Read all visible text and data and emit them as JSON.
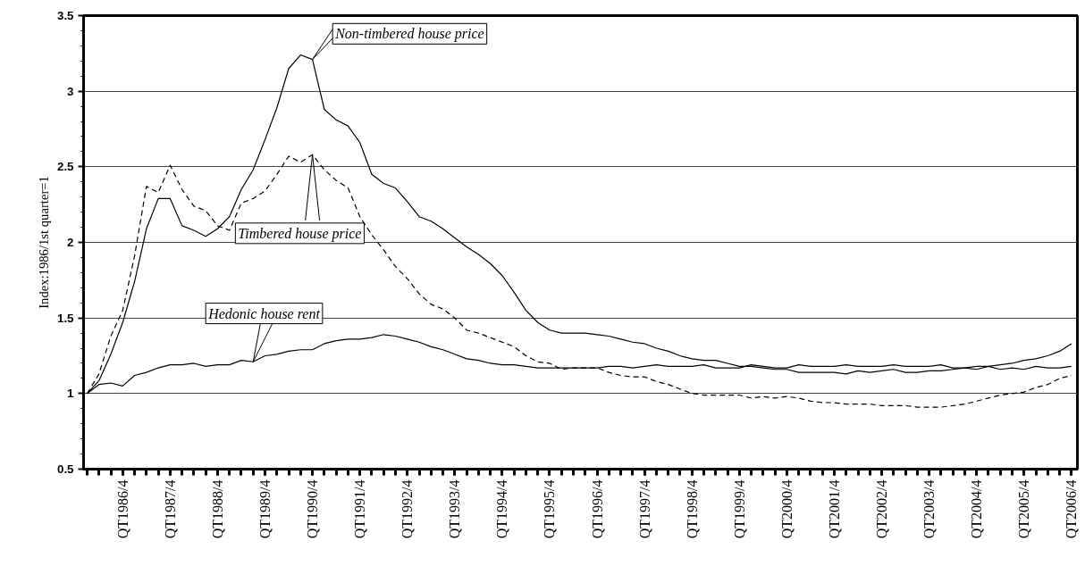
{
  "chart_data": {
    "type": "line",
    "categories": [
      null,
      null,
      null,
      "QT1986/4",
      null,
      null,
      null,
      "QT1987/4",
      null,
      null,
      null,
      "QT1988/4",
      null,
      null,
      null,
      "QT1989/4",
      null,
      null,
      null,
      "QT1990/4",
      null,
      null,
      null,
      "QT1991/4",
      null,
      null,
      null,
      "QT1992/4",
      null,
      null,
      null,
      "QT1993/4",
      null,
      null,
      null,
      "QT1994/4",
      null,
      null,
      null,
      "QT1995/4",
      null,
      null,
      null,
      "QT1996/4",
      null,
      null,
      null,
      "QT1997/4",
      null,
      null,
      null,
      "QT1998/4",
      null,
      null,
      null,
      "QT1999/4",
      null,
      null,
      null,
      "QT2000/4",
      null,
      null,
      null,
      "QT2001/4",
      null,
      null,
      null,
      "QT2002/4",
      null,
      null,
      null,
      "QT2003/4",
      null,
      null,
      null,
      "QT2004/4",
      null,
      null,
      null,
      "QT2005/4",
      null,
      null,
      null,
      "QT2006/4"
    ],
    "ylabel": "Index:1986/1st quarter=1",
    "ylim": [
      0.5,
      3.5
    ],
    "yticks": [
      0.5,
      1,
      1.5,
      2,
      2.5,
      3,
      3.5
    ],
    "grid": "y",
    "series": [
      {
        "name": "Non-timbered house price",
        "color": "#000000",
        "line_style": "solid",
        "values": [
          1.0,
          1.085,
          1.26,
          1.47,
          1.74,
          2.09,
          2.29,
          2.29,
          2.11,
          2.08,
          2.04,
          2.09,
          2.17,
          2.35,
          2.48,
          2.68,
          2.89,
          3.15,
          3.24,
          3.21,
          2.88,
          2.81,
          2.77,
          2.66,
          2.45,
          2.39,
          2.36,
          2.27,
          2.17,
          2.14,
          2.09,
          2.03,
          1.97,
          1.92,
          1.86,
          1.78,
          1.67,
          1.55,
          1.47,
          1.42,
          1.4,
          1.4,
          1.4,
          1.39,
          1.38,
          1.36,
          1.34,
          1.33,
          1.3,
          1.28,
          1.25,
          1.23,
          1.22,
          1.22,
          1.2,
          1.18,
          1.18,
          1.17,
          1.16,
          1.16,
          1.14,
          1.14,
          1.14,
          1.14,
          1.13,
          1.15,
          1.14,
          1.15,
          1.16,
          1.14,
          1.14,
          1.15,
          1.15,
          1.16,
          1.17,
          1.18,
          1.18,
          1.19,
          1.2,
          1.22,
          1.23,
          1.25,
          1.28,
          1.33
        ]
      },
      {
        "name": "Timbered house price",
        "color": "#000000",
        "line_style": "dashed",
        "values": [
          1.0,
          1.13,
          1.38,
          1.55,
          1.91,
          2.37,
          2.33,
          2.51,
          2.35,
          2.24,
          2.21,
          2.11,
          2.08,
          2.26,
          2.29,
          2.34,
          2.45,
          2.57,
          2.53,
          2.58,
          2.48,
          2.41,
          2.36,
          2.17,
          2.05,
          1.95,
          1.84,
          1.76,
          1.66,
          1.59,
          1.56,
          1.5,
          1.42,
          1.4,
          1.37,
          1.34,
          1.31,
          1.25,
          1.21,
          1.2,
          1.16,
          1.17,
          1.17,
          1.17,
          1.14,
          1.12,
          1.11,
          1.11,
          1.08,
          1.06,
          1.03,
          1.0,
          0.99,
          0.99,
          0.99,
          0.99,
          0.97,
          0.98,
          0.97,
          0.98,
          0.97,
          0.95,
          0.94,
          0.94,
          0.93,
          0.93,
          0.93,
          0.92,
          0.92,
          0.92,
          0.91,
          0.91,
          0.91,
          0.92,
          0.93,
          0.95,
          0.97,
          0.99,
          1.0,
          1.01,
          1.04,
          1.06,
          1.1,
          1.12
        ]
      },
      {
        "name": "Hedonic house rent",
        "color": "#000000",
        "line_style": "solid",
        "values": [
          1.0,
          1.06,
          1.07,
          1.05,
          1.12,
          1.14,
          1.17,
          1.19,
          1.19,
          1.2,
          1.18,
          1.19,
          1.19,
          1.22,
          1.21,
          1.25,
          1.26,
          1.28,
          1.29,
          1.29,
          1.33,
          1.35,
          1.36,
          1.36,
          1.37,
          1.39,
          1.38,
          1.36,
          1.34,
          1.31,
          1.29,
          1.26,
          1.23,
          1.22,
          1.2,
          1.19,
          1.19,
          1.18,
          1.17,
          1.17,
          1.17,
          1.17,
          1.17,
          1.17,
          1.18,
          1.18,
          1.17,
          1.18,
          1.19,
          1.18,
          1.18,
          1.18,
          1.19,
          1.17,
          1.17,
          1.17,
          1.19,
          1.18,
          1.17,
          1.17,
          1.19,
          1.18,
          1.18,
          1.18,
          1.19,
          1.18,
          1.18,
          1.18,
          1.19,
          1.18,
          1.18,
          1.18,
          1.19,
          1.17,
          1.17,
          1.16,
          1.18,
          1.16,
          1.17,
          1.16,
          1.18,
          1.17,
          1.17,
          1.18
        ]
      }
    ]
  }
}
